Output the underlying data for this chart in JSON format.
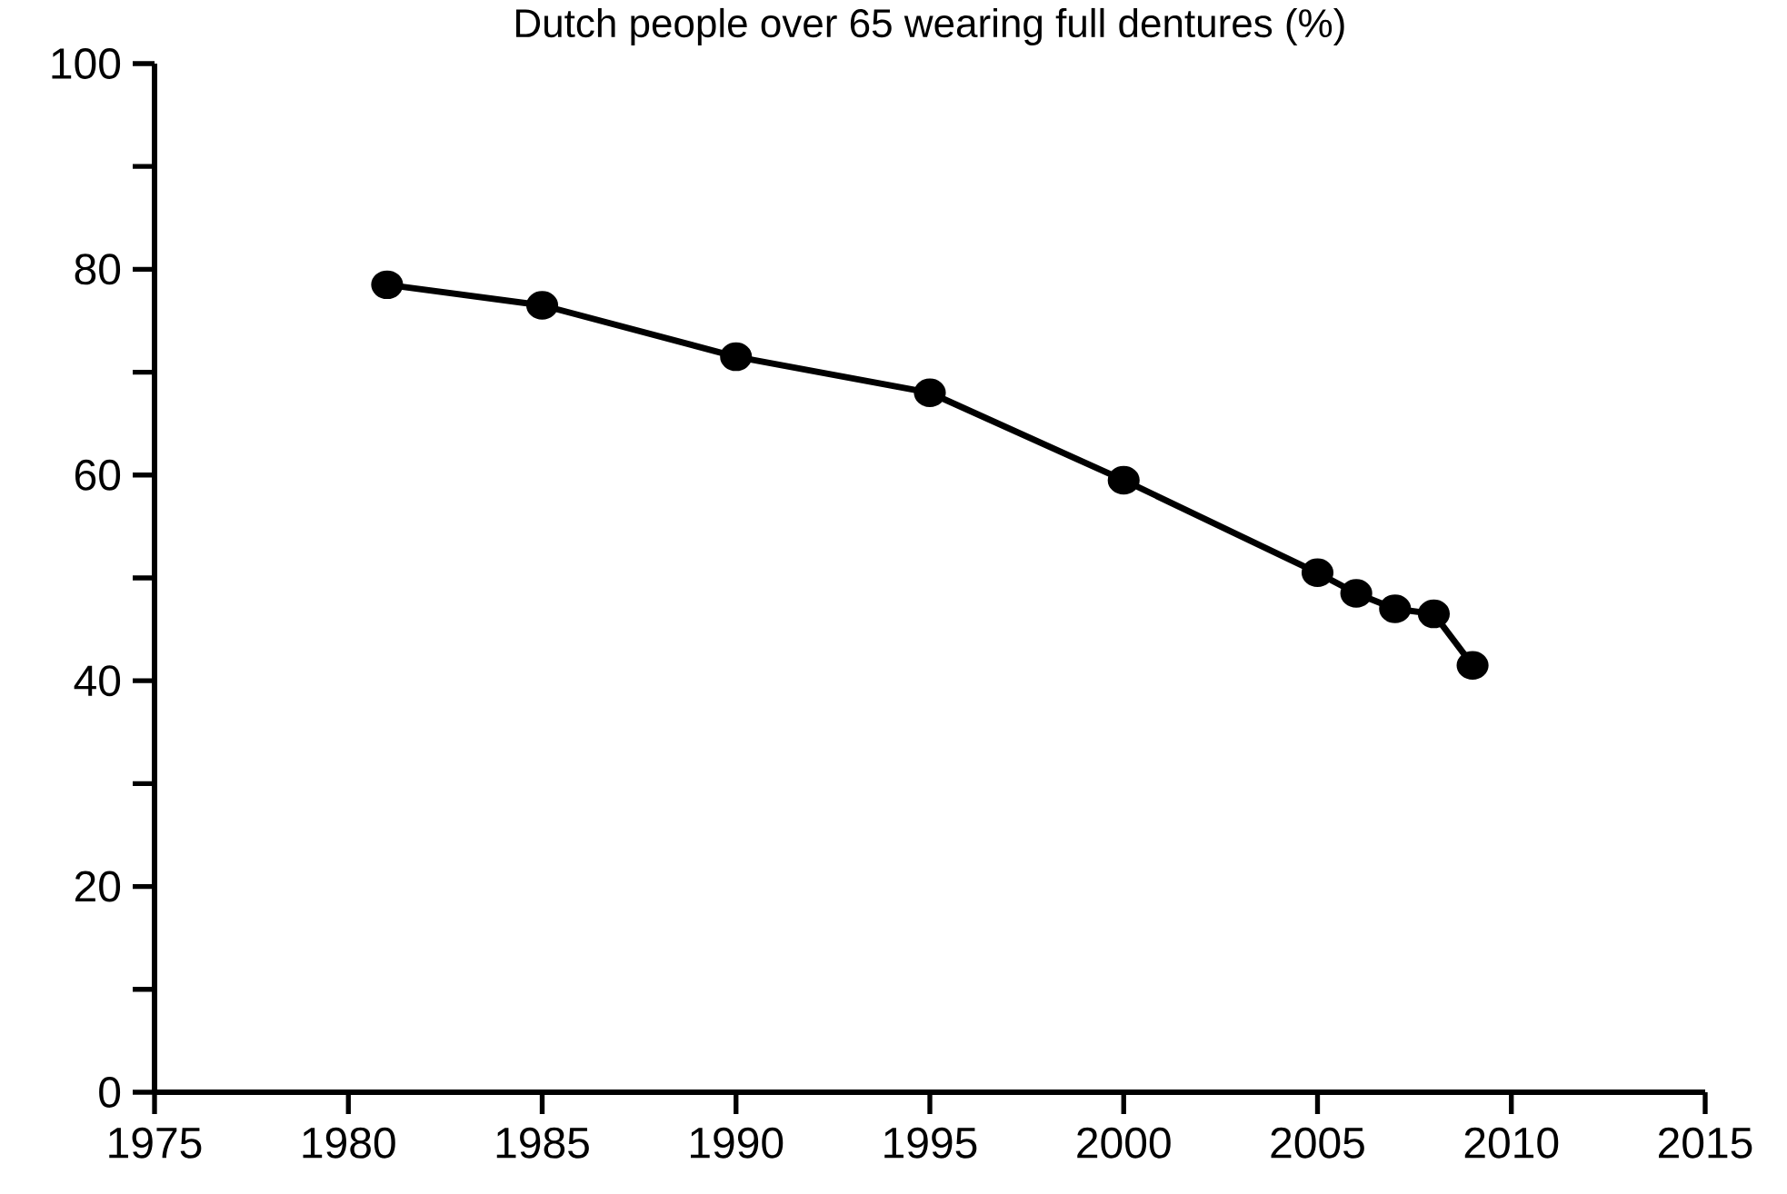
{
  "chart_data": {
    "type": "line",
    "title": "Dutch people over 65 wearing full dentures (%)",
    "x": [
      1981,
      1985,
      1990,
      1995,
      2000,
      2005,
      2006,
      2007,
      2008,
      2009
    ],
    "series": [
      {
        "color": "#000000",
        "values": [
          78.5,
          76.5,
          71.5,
          68,
          59.5,
          50.5,
          48.5,
          47,
          46.5,
          41.5
        ]
      }
    ],
    "xlim": [
      1975,
      2015
    ],
    "xticks": [
      1975,
      1980,
      1985,
      1990,
      1995,
      2000,
      2005,
      2010,
      2015
    ],
    "ylim": [
      0,
      100
    ],
    "yticks": [
      0,
      {
        "value": 10,
        "label": null
      },
      20,
      {
        "value": 30,
        "label": null
      },
      40,
      {
        "value": 50,
        "label": null
      },
      60,
      {
        "value": 70,
        "label": null
      },
      80,
      {
        "value": 90,
        "label": null
      },
      100
    ],
    "grid": false,
    "marker": "circle",
    "line_style": "solid"
  }
}
